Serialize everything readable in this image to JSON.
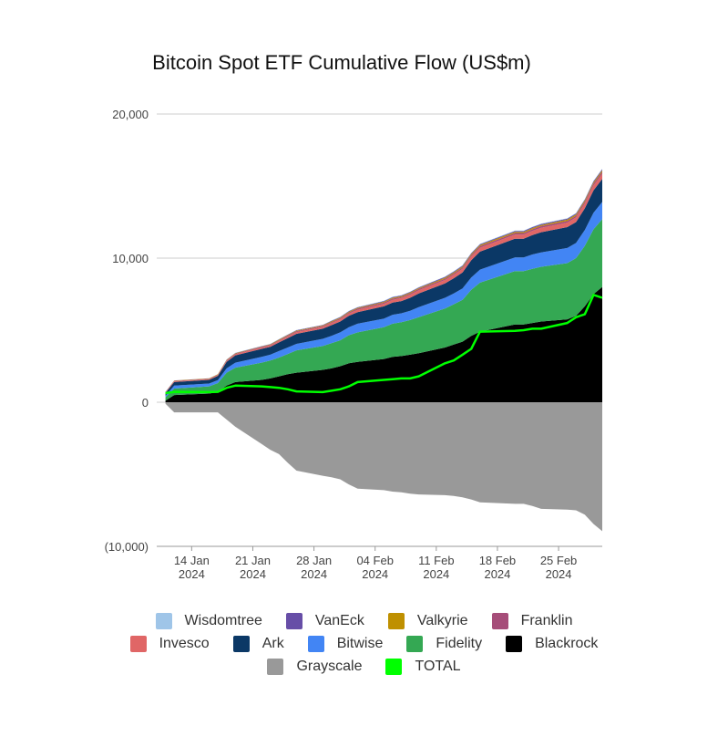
{
  "chart_data": {
    "type": "area",
    "stacked": true,
    "title": "Bitcoin Spot ETF Cumulative Flow (US$m)",
    "y_ticks": [
      "20,000",
      "10,000",
      "0",
      "(10,000)"
    ],
    "ylim": [
      -10000,
      20000
    ],
    "x_ticks": [
      {
        "day": "14 Jan",
        "year": "2024",
        "date": "2024-01-14"
      },
      {
        "day": "21 Jan",
        "year": "2024",
        "date": "2024-01-21"
      },
      {
        "day": "28 Jan",
        "year": "2024",
        "date": "2024-01-28"
      },
      {
        "day": "04 Feb",
        "year": "2024",
        "date": "2024-02-04"
      },
      {
        "day": "11 Feb",
        "year": "2024",
        "date": "2024-02-11"
      },
      {
        "day": "18 Feb",
        "year": "2024",
        "date": "2024-02-18"
      },
      {
        "day": "25 Feb",
        "year": "2024",
        "date": "2024-02-25"
      }
    ],
    "x": [
      "2024-01-11",
      "2024-01-12",
      "2024-01-16",
      "2024-01-17",
      "2024-01-18",
      "2024-01-19",
      "2024-01-22",
      "2024-01-23",
      "2024-01-24",
      "2024-01-25",
      "2024-01-26",
      "2024-01-29",
      "2024-01-30",
      "2024-01-31",
      "2024-02-01",
      "2024-02-02",
      "2024-02-05",
      "2024-02-06",
      "2024-02-07",
      "2024-02-08",
      "2024-02-09",
      "2024-02-12",
      "2024-02-13",
      "2024-02-14",
      "2024-02-15",
      "2024-02-16",
      "2024-02-20",
      "2024-02-21",
      "2024-02-22",
      "2024-02-23",
      "2024-02-26",
      "2024-02-27",
      "2024-02-28",
      "2024-02-29",
      "2024-03-01"
    ],
    "series": [
      {
        "name": "Blackrock",
        "color": "#000000",
        "values": [
          110,
          500,
          600,
          720,
          1150,
          1400,
          1550,
          1650,
          1800,
          1950,
          2050,
          2250,
          2350,
          2500,
          2700,
          2800,
          3000,
          3150,
          3200,
          3300,
          3400,
          3800,
          4000,
          4200,
          4600,
          4900,
          5400,
          5400,
          5500,
          5600,
          5750,
          6000,
          6650,
          7500,
          8000
        ]
      },
      {
        "name": "Fidelity",
        "color": "#34a853",
        "values": [
          230,
          450,
          500,
          610,
          900,
          1000,
          1200,
          1250,
          1300,
          1400,
          1550,
          1650,
          1750,
          1800,
          1950,
          2050,
          2200,
          2300,
          2350,
          2400,
          2500,
          2700,
          2800,
          2900,
          3200,
          3400,
          3700,
          3700,
          3750,
          3800,
          3900,
          4000,
          4200,
          4500,
          4700
        ]
      },
      {
        "name": "Bitwise",
        "color": "#4285f4",
        "values": [
          100,
          200,
          200,
          200,
          300,
          350,
          400,
          400,
          450,
          450,
          450,
          500,
          500,
          550,
          550,
          600,
          600,
          620,
          620,
          650,
          700,
          750,
          750,
          800,
          850,
          900,
          950,
          950,
          1000,
          1000,
          1050,
          1050,
          1100,
          1150,
          1200
        ]
      },
      {
        "name": "Ark",
        "color": "#0b3866",
        "values": [
          200,
          250,
          250,
          300,
          450,
          500,
          550,
          550,
          600,
          650,
          700,
          700,
          750,
          750,
          800,
          800,
          850,
          850,
          850,
          900,
          950,
          1000,
          1050,
          1100,
          1200,
          1250,
          1300,
          1300,
          1350,
          1400,
          1450,
          1450,
          1500,
          1550,
          1600
        ]
      },
      {
        "name": "Invesco",
        "color": "#e06666",
        "values": [
          40,
          50,
          50,
          60,
          70,
          80,
          90,
          90,
          100,
          110,
          120,
          130,
          140,
          150,
          160,
          170,
          180,
          190,
          200,
          210,
          220,
          230,
          240,
          250,
          260,
          270,
          280,
          280,
          290,
          300,
          310,
          320,
          330,
          340,
          350
        ]
      },
      {
        "name": "Franklin",
        "color": "#a64d79",
        "values": [
          20,
          30,
          30,
          30,
          40,
          40,
          50,
          50,
          50,
          60,
          60,
          60,
          70,
          70,
          70,
          80,
          80,
          80,
          80,
          90,
          90,
          90,
          100,
          100,
          100,
          110,
          110,
          110,
          110,
          120,
          120,
          120,
          130,
          130,
          140
        ]
      },
      {
        "name": "Valkyrie",
        "color": "#bf9000",
        "values": [
          10,
          20,
          20,
          20,
          30,
          30,
          30,
          30,
          40,
          40,
          40,
          40,
          50,
          50,
          50,
          50,
          60,
          60,
          60,
          60,
          60,
          70,
          70,
          70,
          70,
          80,
          80,
          80,
          80,
          80,
          90,
          90,
          90,
          90,
          100
        ]
      },
      {
        "name": "VanEck",
        "color": "#674ea7",
        "values": [
          10,
          10,
          10,
          10,
          20,
          20,
          20,
          20,
          30,
          30,
          30,
          30,
          40,
          40,
          40,
          40,
          50,
          50,
          50,
          50,
          50,
          60,
          60,
          60,
          60,
          60,
          60,
          60,
          70,
          70,
          70,
          70,
          70,
          80,
          80
        ]
      },
      {
        "name": "Wisdomtree",
        "color": "#9fc5e8",
        "values": [
          5,
          5,
          5,
          5,
          10,
          10,
          10,
          10,
          10,
          10,
          10,
          10,
          20,
          20,
          20,
          20,
          20,
          20,
          20,
          20,
          20,
          20,
          30,
          30,
          30,
          30,
          30,
          30,
          30,
          30,
          30,
          30,
          30,
          30,
          30
        ]
      },
      {
        "name": "Grayscale",
        "color": "#999999",
        "values": [
          -100,
          -700,
          -700,
          -700,
          -1200,
          -1700,
          -2900,
          -3300,
          -3600,
          -4200,
          -4750,
          -5100,
          -5200,
          -5350,
          -5700,
          -6000,
          -6100,
          -6200,
          -6250,
          -6350,
          -6400,
          -6450,
          -6500,
          -6600,
          -6750,
          -6950,
          -7050,
          -7050,
          -7200,
          -7400,
          -7450,
          -7500,
          -7800,
          -8450,
          -8950
        ]
      },
      {
        "name": "TOTAL",
        "color": "#00ff00",
        "type": "line",
        "values": [
          630,
          720,
          700,
          720,
          1000,
          1150,
          1100,
          1050,
          1000,
          900,
          750,
          700,
          800,
          900,
          1100,
          1400,
          1550,
          1600,
          1650,
          1650,
          1800,
          2700,
          2900,
          3300,
          3700,
          4900,
          4950,
          5000,
          5100,
          5100,
          5500,
          5900,
          6100,
          7450,
          7250
        ]
      }
    ],
    "legend_rows": [
      [
        "Wisdomtree",
        "VanEck",
        "Valkyrie",
        "Franklin"
      ],
      [
        "Invesco",
        "Ark",
        "Bitwise",
        "Fidelity",
        "Blackrock"
      ],
      [
        "Grayscale",
        "TOTAL"
      ]
    ],
    "grid": true,
    "legend_position": "bottom"
  }
}
